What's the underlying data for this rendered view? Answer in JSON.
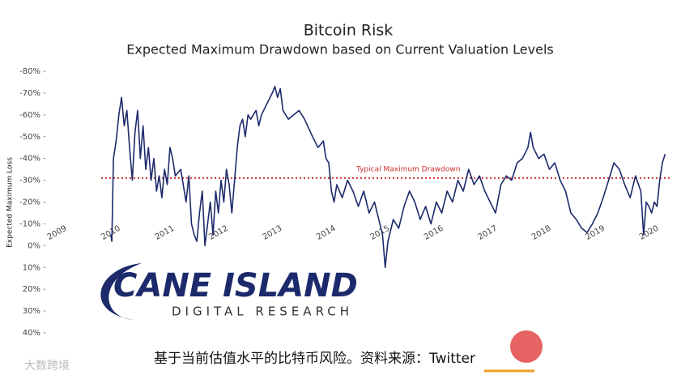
{
  "chart_data": {
    "type": "line",
    "title": "Bitcoin Risk",
    "subtitle": "Expected Maximum Drawdown based on Current Valuation Levels",
    "y_label": "Expected Maximum Loss",
    "inverted_y": true,
    "ylim": [
      -80,
      40
    ],
    "yticks": [
      {
        "value": -80,
        "label": "-80%"
      },
      {
        "value": -70,
        "label": "-70%"
      },
      {
        "value": -60,
        "label": "-60%"
      },
      {
        "value": -50,
        "label": "-50%"
      },
      {
        "value": -40,
        "label": "-40%"
      },
      {
        "value": -30,
        "label": "-30%"
      },
      {
        "value": -20,
        "label": "-20%"
      },
      {
        "value": -10,
        "label": "-10%"
      },
      {
        "value": 0,
        "label": "0%"
      },
      {
        "value": 10,
        "label": "10%"
      },
      {
        "value": 20,
        "label": "20%"
      },
      {
        "value": 30,
        "label": "30%"
      },
      {
        "value": 40,
        "label": "40%"
      }
    ],
    "xlim": [
      2008.95,
      2020.4
    ],
    "xticks": [
      2009,
      2010,
      2011,
      2012,
      2013,
      2014,
      2015,
      2016,
      2017,
      2018,
      2019,
      2020
    ],
    "reference_line": {
      "value": -31,
      "label": "Typical Maximum Drawdown",
      "color": "#d03030"
    },
    "x": [
      2010.0,
      2010.02,
      2010.05,
      2010.1,
      2010.15,
      2010.2,
      2010.25,
      2010.3,
      2010.35,
      2010.4,
      2010.45,
      2010.5,
      2010.55,
      2010.6,
      2010.65,
      2010.7,
      2010.75,
      2010.8,
      2010.85,
      2010.9,
      2010.95,
      2011.0,
      2011.05,
      2011.1,
      2011.15,
      2011.2,
      2011.3,
      2011.4,
      2011.45,
      2011.5,
      2011.55,
      2011.6,
      2011.65,
      2011.7,
      2011.75,
      2011.8,
      2011.85,
      2011.9,
      2011.95,
      2012.0,
      2012.05,
      2012.1,
      2012.15,
      2012.2,
      2012.25,
      2012.3,
      2012.35,
      2012.4,
      2012.45,
      2012.5,
      2012.55,
      2012.6,
      2012.7,
      2012.75,
      2012.8,
      2012.9,
      2013.0,
      2013.05,
      2013.1,
      2013.15,
      2013.2,
      2013.3,
      2013.4,
      2013.5,
      2013.6,
      2013.75,
      2013.85,
      2013.95,
      2014.0,
      2014.05,
      2014.1,
      2014.15,
      2014.2,
      2014.3,
      2014.4,
      2014.5,
      2014.6,
      2014.7,
      2014.8,
      2014.9,
      2015.0,
      2015.05,
      2015.1,
      2015.15,
      2015.25,
      2015.35,
      2015.45,
      2015.55,
      2015.65,
      2015.75,
      2015.85,
      2015.95,
      2016.05,
      2016.15,
      2016.25,
      2016.35,
      2016.45,
      2016.55,
      2016.65,
      2016.75,
      2016.85,
      2016.95,
      2017.05,
      2017.15,
      2017.25,
      2017.35,
      2017.45,
      2017.55,
      2017.65,
      2017.75,
      2017.8,
      2017.85,
      2017.95,
      2018.05,
      2018.15,
      2018.25,
      2018.35,
      2018.45,
      2018.55,
      2018.65,
      2018.75,
      2018.85,
      2018.95,
      2019.05,
      2019.15,
      2019.25,
      2019.35,
      2019.45,
      2019.55,
      2019.65,
      2019.75,
      2019.85,
      2019.9,
      2019.95,
      2020.0,
      2020.05,
      2020.1,
      2020.15,
      2020.2,
      2020.25,
      2020.3
    ],
    "series": [
      {
        "color": "#1c2a6b",
        "values": [
          -5,
          -2,
          -40,
          -48,
          -60,
          -68,
          -55,
          -62,
          -45,
          -30,
          -52,
          -62,
          -40,
          -55,
          -35,
          -45,
          -30,
          -40,
          -25,
          -32,
          -22,
          -35,
          -28,
          -45,
          -40,
          -32,
          -35,
          -20,
          -32,
          -10,
          -5,
          -2,
          -15,
          -25,
          0,
          -10,
          -20,
          -5,
          -25,
          -15,
          -30,
          -20,
          -35,
          -28,
          -15,
          -30,
          -45,
          -55,
          -58,
          -50,
          -60,
          -58,
          -62,
          -55,
          -60,
          -65,
          -70,
          -73,
          -68,
          -72,
          -62,
          -58,
          -60,
          -62,
          -58,
          -50,
          -45,
          -48,
          -40,
          -38,
          -25,
          -20,
          -28,
          -22,
          -30,
          -25,
          -18,
          -25,
          -15,
          -20,
          -10,
          -5,
          10,
          -2,
          -12,
          -8,
          -18,
          -25,
          -20,
          -12,
          -18,
          -10,
          -20,
          -15,
          -25,
          -20,
          -30,
          -25,
          -35,
          -28,
          -32,
          -25,
          -20,
          -15,
          -28,
          -32,
          -30,
          -38,
          -40,
          -45,
          -52,
          -45,
          -40,
          -42,
          -35,
          -38,
          -30,
          -25,
          -15,
          -12,
          -8,
          -6,
          -10,
          -15,
          -22,
          -30,
          -38,
          -35,
          -28,
          -22,
          -32,
          -25,
          -5,
          -20,
          -18,
          -15,
          -20,
          -18,
          -30,
          -38,
          -42
        ]
      }
    ]
  },
  "logo": {
    "name": "CANE ISLAND",
    "tagline": "DIGITAL RESEARCH"
  },
  "caption": "基于当前估值水平的比特币风险。资料来源：Twitter",
  "watermark": "大数跨境"
}
